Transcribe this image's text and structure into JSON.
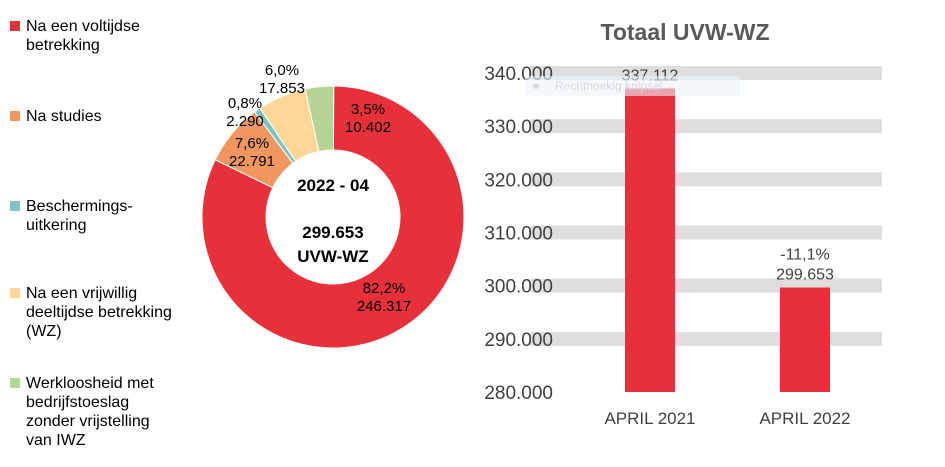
{
  "chart_data": [
    {
      "type": "pie",
      "donut": true,
      "center_title": "2022 - 04",
      "center_value": "299.653",
      "center_unit": "UVW-WZ",
      "slices": [
        {
          "name": "Na een voltijdse betrekking",
          "percent": 82.2,
          "value": 246317,
          "pct_label": "82,2%",
          "val_label": "246.317",
          "color": "#e8303a"
        },
        {
          "name": "Na studies",
          "percent": 7.6,
          "value": 22791,
          "pct_label": "7,6%",
          "val_label": "22.791",
          "color": "#f0965e"
        },
        {
          "name": "Beschermings-uitkering",
          "percent": 0.8,
          "value": 2290,
          "pct_label": "0,8%",
          "val_label": "2.290",
          "color": "#7ec4c6"
        },
        {
          "name": "Na een vrijwillig deeltijdse betrekking (WZ)",
          "percent": 6.0,
          "value": 17853,
          "pct_label": "6,0%",
          "val_label": "17.853",
          "color": "#fdd795"
        },
        {
          "name": "Werkloosheid met bedrijfstoeslag zonder vrijstelling van IWZ",
          "percent": 3.5,
          "value": 10402,
          "pct_label": "3,5%",
          "val_label": "10.402",
          "color": "#b6d594"
        }
      ],
      "legend": [
        {
          "label": "Na een voltijdse betrekking",
          "color": "#e8303a"
        },
        {
          "label": "Na studies",
          "color": "#f0965e"
        },
        {
          "label": "Beschermings-uitkering",
          "color": "#7ec4c6"
        },
        {
          "label": "Na een vrijwillig deeltijdse betrekking (WZ)",
          "color": "#fdd795"
        },
        {
          "label": "Werkloosheid met bedrijfstoeslag zonder vrijstelling van IWZ",
          "color": "#b6d594"
        }
      ],
      "legend_placement": "left"
    },
    {
      "type": "bar",
      "title": "Totaal UVW-WZ",
      "categories": [
        "APRIL 2021",
        "APRIL 2022"
      ],
      "values": [
        337112,
        299653
      ],
      "data_labels": [
        "337.112",
        "-11,1%\n299.653"
      ],
      "ylim": [
        280000,
        340000
      ],
      "yticks": [
        "280.000",
        "290.000",
        "300.000",
        "310.000",
        "320.000",
        "330.000",
        "340.000"
      ],
      "grid": true,
      "bar_color": "#e8303a"
    }
  ],
  "overlay_tooltip": "Rechthoekig knipsel"
}
